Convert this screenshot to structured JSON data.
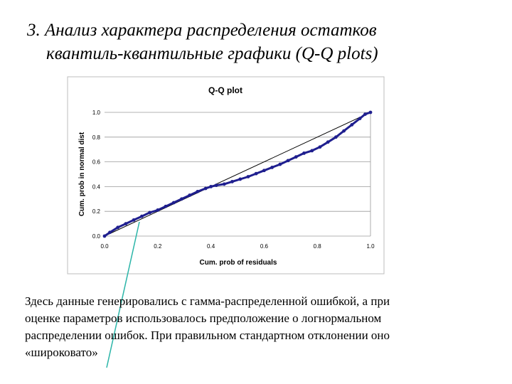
{
  "slide": {
    "title_line1": "3. Анализ характера распределения остатков",
    "title_line2": "квантиль-квантильные графики (Q-Q plots)",
    "description": [
      "Здесь данные генерировались с гамма-распределенной ошибкой, а при",
      "оценке параметров использовалось предположение о логнормальном",
      "распределении ошибок. При правильном стандартном отклонении оно",
      "«широковато»"
    ]
  },
  "colors": {
    "data_series": "#1f1f8f",
    "reference_line": "#000000",
    "annotation_arrow": "#2bb5a8",
    "gridline": "#9a9a9a",
    "plot_border": "#bdbdbd"
  },
  "chart_data": {
    "type": "scatter",
    "title": "Q-Q plot",
    "xlabel": "Cum. prob of residuals",
    "ylabel": "Cum. prob in normal dist",
    "xlim": [
      0,
      1
    ],
    "ylim": [
      0,
      1
    ],
    "x_ticks": [
      "0.0",
      "0.2",
      "0.4",
      "0.6",
      "0.8",
      "1.0"
    ],
    "y_ticks": [
      "0.0",
      "0.2",
      "0.4",
      "0.6",
      "0.8",
      "1.0"
    ],
    "grid": "horizontal",
    "legend": "none",
    "reference_line": {
      "x": [
        0,
        1
      ],
      "y": [
        0,
        1
      ]
    },
    "series": [
      {
        "x": [
          0.0,
          0.02,
          0.05,
          0.08,
          0.11,
          0.14,
          0.17,
          0.2,
          0.23,
          0.26,
          0.29,
          0.32,
          0.35,
          0.38,
          0.4,
          0.42,
          0.45,
          0.48,
          0.51,
          0.54,
          0.57,
          0.6,
          0.63,
          0.66,
          0.69,
          0.72,
          0.75,
          0.78,
          0.81,
          0.84,
          0.87,
          0.9,
          0.93,
          0.96,
          0.98,
          1.0
        ],
        "y": [
          0.0,
          0.03,
          0.07,
          0.1,
          0.13,
          0.16,
          0.19,
          0.21,
          0.24,
          0.27,
          0.3,
          0.33,
          0.36,
          0.385,
          0.4,
          0.41,
          0.42,
          0.44,
          0.46,
          0.48,
          0.505,
          0.53,
          0.555,
          0.58,
          0.61,
          0.64,
          0.67,
          0.69,
          0.72,
          0.76,
          0.8,
          0.85,
          0.9,
          0.95,
          0.985,
          1.0
        ]
      }
    ]
  }
}
